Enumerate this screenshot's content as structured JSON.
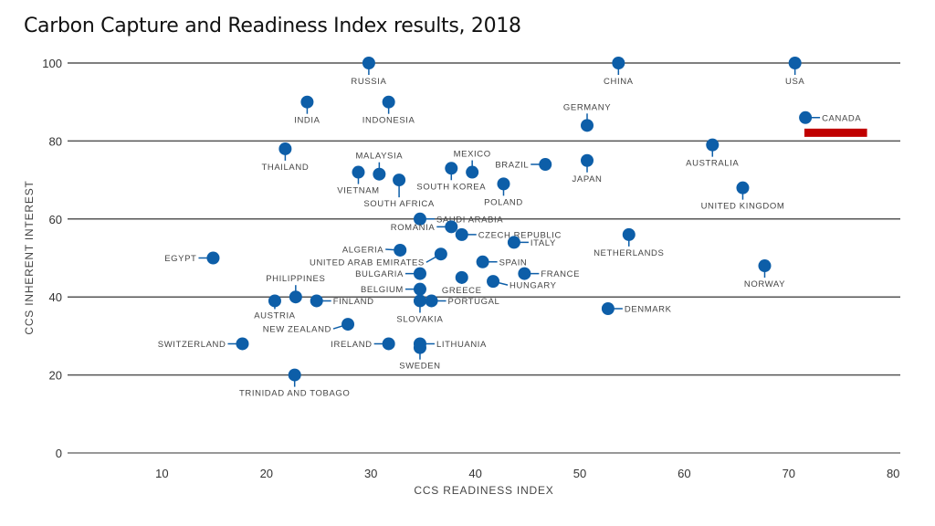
{
  "chart_data": {
    "type": "scatter",
    "title": "Carbon Capture and Readiness Index results, 2018",
    "xlabel": "CCS READINESS INDEX",
    "ylabel": "CCS INHERENT INTEREST",
    "xlim": [
      0,
      80
    ],
    "ylim": [
      0,
      100
    ],
    "xticks": [
      "10",
      "20",
      "30",
      "40",
      "50",
      "60",
      "70",
      "80"
    ],
    "yticks": [
      "0",
      "20",
      "40",
      "60",
      "80",
      "100"
    ],
    "grid": "horizontal",
    "point_color": "#0d5ea8",
    "highlight_color": "#c00000",
    "highlight": {
      "label": "CANADA",
      "x_range": [
        71.5,
        77.5
      ],
      "y": 82
    },
    "points": [
      {
        "name": "RUSSIA",
        "x": 29.8,
        "y": 100,
        "pos": "b"
      },
      {
        "name": "CHINA",
        "x": 53.7,
        "y": 100,
        "pos": "b"
      },
      {
        "name": "USA",
        "x": 70.6,
        "y": 100,
        "pos": "b"
      },
      {
        "name": "INDIA",
        "x": 23.9,
        "y": 90,
        "pos": "b"
      },
      {
        "name": "INDONESIA",
        "x": 31.7,
        "y": 90,
        "pos": "b"
      },
      {
        "name": "GERMANY",
        "x": 50.7,
        "y": 84,
        "pos": "t"
      },
      {
        "name": "CANADA",
        "x": 71.6,
        "y": 86,
        "pos": "r"
      },
      {
        "name": "THAILAND",
        "x": 21.8,
        "y": 78,
        "pos": "b"
      },
      {
        "name": "AUSTRALIA",
        "x": 62.7,
        "y": 79,
        "pos": "b"
      },
      {
        "name": "VIETNAM",
        "x": 28.8,
        "y": 72,
        "pos": "b"
      },
      {
        "name": "MALAYSIA",
        "x": 30.8,
        "y": 71.5,
        "pos": "t"
      },
      {
        "name": "SOUTH AFRICA",
        "x": 32.7,
        "y": 70,
        "pos": "b"
      },
      {
        "name": "SOUTH KOREA",
        "x": 37.7,
        "y": 73,
        "pos": "b"
      },
      {
        "name": "MEXICO",
        "x": 39.7,
        "y": 72,
        "pos": "t"
      },
      {
        "name": "BRAZIL",
        "x": 46.7,
        "y": 74,
        "pos": "l"
      },
      {
        "name": "JAPAN",
        "x": 50.7,
        "y": 75,
        "pos": "b"
      },
      {
        "name": "POLAND",
        "x": 42.7,
        "y": 69,
        "pos": "b"
      },
      {
        "name": "UNITED KINGDOM",
        "x": 65.6,
        "y": 68,
        "pos": "b"
      },
      {
        "name": "SAUDI ARABIA",
        "x": 34.7,
        "y": 60,
        "pos": "r"
      },
      {
        "name": "ROMANIA",
        "x": 37.7,
        "y": 58,
        "pos": "l"
      },
      {
        "name": "CZECH REPUBLIC",
        "x": 38.7,
        "y": 56,
        "pos": "r"
      },
      {
        "name": "ITALY",
        "x": 43.7,
        "y": 54,
        "pos": "r"
      },
      {
        "name": "NETHERLANDS",
        "x": 54.7,
        "y": 56,
        "pos": "b"
      },
      {
        "name": "EGYPT",
        "x": 14.9,
        "y": 50,
        "pos": "l"
      },
      {
        "name": "ALGERIA",
        "x": 32.8,
        "y": 52,
        "pos": "l"
      },
      {
        "name": "UNITED ARAB EMIRATES",
        "x": 36.7,
        "y": 51,
        "pos": "l"
      },
      {
        "name": "SPAIN",
        "x": 40.7,
        "y": 49,
        "pos": "r"
      },
      {
        "name": "NORWAY",
        "x": 67.7,
        "y": 48,
        "pos": "b"
      },
      {
        "name": "BULGARIA",
        "x": 34.7,
        "y": 46,
        "pos": "l"
      },
      {
        "name": "FRANCE",
        "x": 44.7,
        "y": 46,
        "pos": "r"
      },
      {
        "name": "GREECE",
        "x": 38.7,
        "y": 45,
        "pos": "b"
      },
      {
        "name": "HUNGARY",
        "x": 41.7,
        "y": 44,
        "pos": "r"
      },
      {
        "name": "BELGIUM",
        "x": 34.7,
        "y": 42,
        "pos": "l"
      },
      {
        "name": "PHILIPPINES",
        "x": 22.8,
        "y": 40,
        "pos": "t"
      },
      {
        "name": "AUSTRIA",
        "x": 20.8,
        "y": 39,
        "pos": "b"
      },
      {
        "name": "FINLAND",
        "x": 24.8,
        "y": 39,
        "pos": "r"
      },
      {
        "name": "SLOVAKIA",
        "x": 34.7,
        "y": 39,
        "pos": "b"
      },
      {
        "name": "PORTUGAL",
        "x": 35.8,
        "y": 39,
        "pos": "r"
      },
      {
        "name": "DENMARK",
        "x": 52.7,
        "y": 37,
        "pos": "r"
      },
      {
        "name": "NEW ZEALAND",
        "x": 27.8,
        "y": 33,
        "pos": "l"
      },
      {
        "name": "SWITZERLAND",
        "x": 17.7,
        "y": 28,
        "pos": "l"
      },
      {
        "name": "IRELAND",
        "x": 31.7,
        "y": 28,
        "pos": "l"
      },
      {
        "name": "LITHUANIA",
        "x": 34.7,
        "y": 28,
        "pos": "r"
      },
      {
        "name": "SWEDEN",
        "x": 34.7,
        "y": 27,
        "pos": "b"
      },
      {
        "name": "TRINIDAD AND TOBAGO",
        "x": 22.7,
        "y": 20,
        "pos": "b"
      }
    ]
  }
}
